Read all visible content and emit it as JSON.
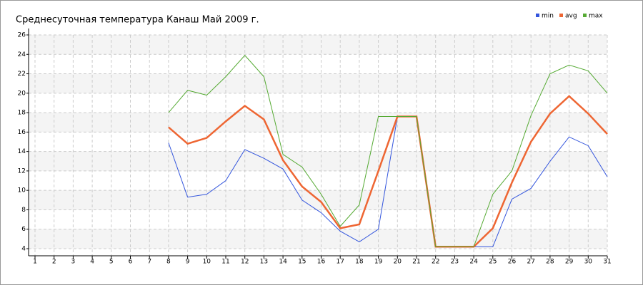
{
  "chart_data": {
    "type": "line",
    "title": "Среднесуточная температура Канаш  Май 2009 г.",
    "x": [
      1,
      2,
      3,
      4,
      5,
      6,
      7,
      8,
      9,
      10,
      11,
      12,
      13,
      14,
      15,
      16,
      17,
      18,
      19,
      20,
      21,
      22,
      23,
      24,
      25,
      26,
      27,
      28,
      29,
      30,
      31
    ],
    "series": [
      {
        "name": "min",
        "color": "#3355dd",
        "values": [
          null,
          null,
          null,
          null,
          null,
          null,
          null,
          14.9,
          9.3,
          9.6,
          11.0,
          14.2,
          13.3,
          12.2,
          9.0,
          7.7,
          5.8,
          4.7,
          6.0,
          17.6,
          17.6,
          4.2,
          4.2,
          4.2,
          4.2,
          9.1,
          10.2,
          13.0,
          15.5,
          14.6,
          11.4
        ]
      },
      {
        "name": "avg",
        "color": "#ee6633",
        "values": [
          null,
          null,
          null,
          null,
          null,
          null,
          null,
          16.5,
          14.8,
          15.4,
          17.1,
          18.7,
          17.3,
          13.1,
          10.4,
          8.8,
          6.1,
          6.5,
          12.0,
          17.6,
          17.6,
          4.2,
          4.2,
          4.2,
          6.1,
          10.8,
          15.0,
          17.9,
          19.7,
          17.9,
          15.8
        ]
      },
      {
        "name": "max",
        "color": "#55aa33",
        "values": [
          null,
          null,
          null,
          null,
          null,
          null,
          null,
          18.0,
          20.3,
          19.8,
          21.7,
          23.9,
          21.7,
          13.7,
          12.4,
          9.6,
          6.3,
          8.5,
          17.6,
          17.6,
          17.6,
          4.2,
          4.2,
          4.2,
          9.6,
          12.0,
          17.7,
          22.0,
          22.9,
          22.3,
          20.0
        ]
      }
    ],
    "xlim": [
      1,
      31
    ],
    "xticks": [
      1,
      2,
      3,
      4,
      5,
      6,
      7,
      8,
      9,
      10,
      11,
      12,
      13,
      14,
      15,
      16,
      17,
      18,
      19,
      20,
      21,
      22,
      23,
      24,
      25,
      26,
      27,
      28,
      29,
      30,
      31
    ],
    "ylim": [
      4,
      26
    ],
    "yticks": [
      4,
      6,
      8,
      10,
      12,
      14,
      16,
      18,
      20,
      22,
      24,
      26
    ],
    "grid": true,
    "legend": "top-right"
  }
}
